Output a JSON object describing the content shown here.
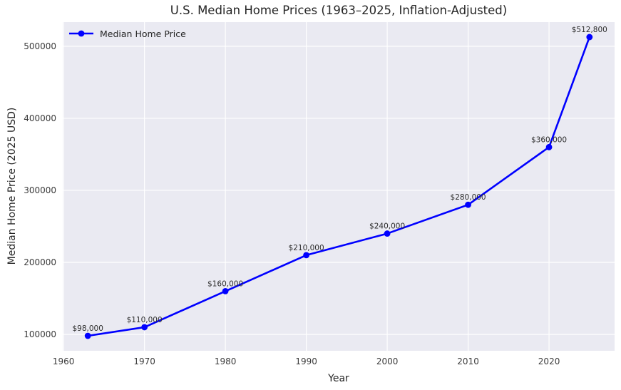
{
  "chart_data": {
    "type": "line",
    "title": "U.S. Median Home Prices (1963–2025, Inflation-Adjusted)",
    "xlabel": "Year",
    "ylabel": "Median Home Price (2025 USD)",
    "series": [
      {
        "name": "Median Home Price",
        "x": [
          1963,
          1970,
          1980,
          1990,
          2000,
          2010,
          2020,
          2025
        ],
        "y": [
          98000,
          110000,
          160000,
          210000,
          240000,
          280000,
          360000,
          512800
        ],
        "point_labels": [
          "$98,000",
          "$110,000",
          "$160,000",
          "$210,000",
          "$240,000",
          "$280,000",
          "$360,000",
          "$512,800"
        ],
        "color": "#0000ff"
      }
    ],
    "xticks": [
      1960,
      1970,
      1980,
      1990,
      2000,
      2010,
      2020
    ],
    "yticks": [
      100000,
      200000,
      300000,
      400000,
      500000
    ],
    "xlim": [
      1959.9,
      2028.1
    ],
    "ylim": [
      77260,
      533540
    ],
    "grid": true,
    "legend_position": "upper left",
    "styles": {
      "plot_bg": "#eaeaf2",
      "grid_color": "#ffffff",
      "text_color": "#262626"
    }
  }
}
